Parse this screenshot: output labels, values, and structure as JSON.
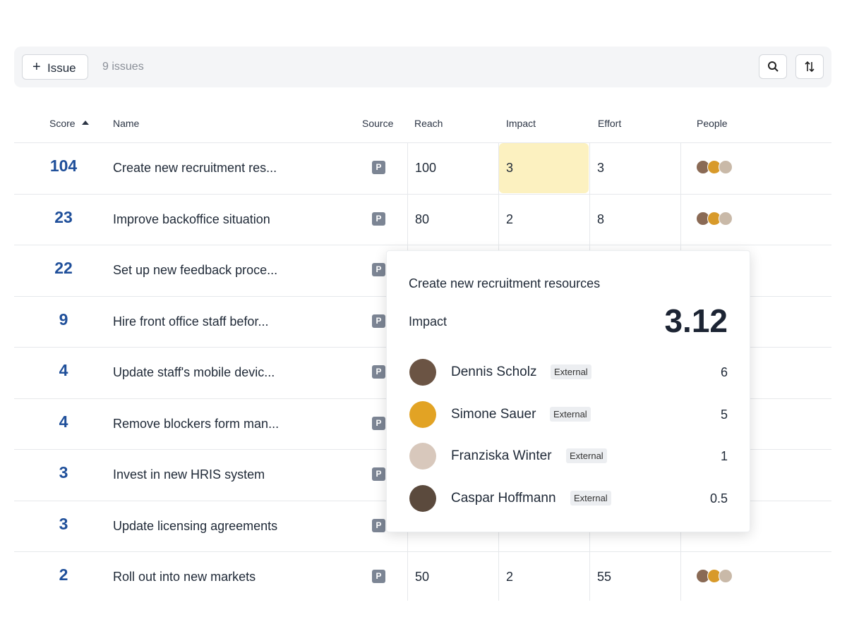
{
  "toolbar": {
    "button": "Issue",
    "count": "9 issues"
  },
  "table": {
    "headers": [
      "Score",
      "Name",
      "Source",
      "Reach",
      "Impact",
      "Effort",
      "People"
    ],
    "rows": [
      [
        104,
        "Create new recruitment res...",
        "P",
        100,
        3,
        3
      ],
      [
        23,
        "Improve backoffice situation",
        "P",
        80,
        2,
        8
      ],
      [
        22,
        "Set up new feedback proce...",
        "P"
      ],
      [
        9,
        "Hire front office staff befor...",
        "P"
      ],
      [
        4,
        "Update staff's mobile devic...",
        "P"
      ],
      [
        4,
        "Remove blockers form man...",
        "P"
      ],
      [
        3,
        "Invest in new HRIS system",
        "P"
      ],
      [
        3,
        "Update licensing agreements",
        "P"
      ],
      [
        2,
        "Roll out into new markets",
        "P",
        50,
        2,
        55
      ]
    ]
  },
  "popover": {
    "title": "Create new recruitment resources",
    "label": "Impact",
    "value": 3.12,
    "people": [
      {
        "name": "Dennis Scholz",
        "tag": "External",
        "value": 6
      },
      {
        "name": "Simone Sauer",
        "tag": "External",
        "value": 5
      },
      {
        "name": "Franziska Winter",
        "tag": "External",
        "value": 1
      },
      {
        "name": "Caspar Hoffmann",
        "tag": "External",
        "value": 0.5
      }
    ]
  }
}
